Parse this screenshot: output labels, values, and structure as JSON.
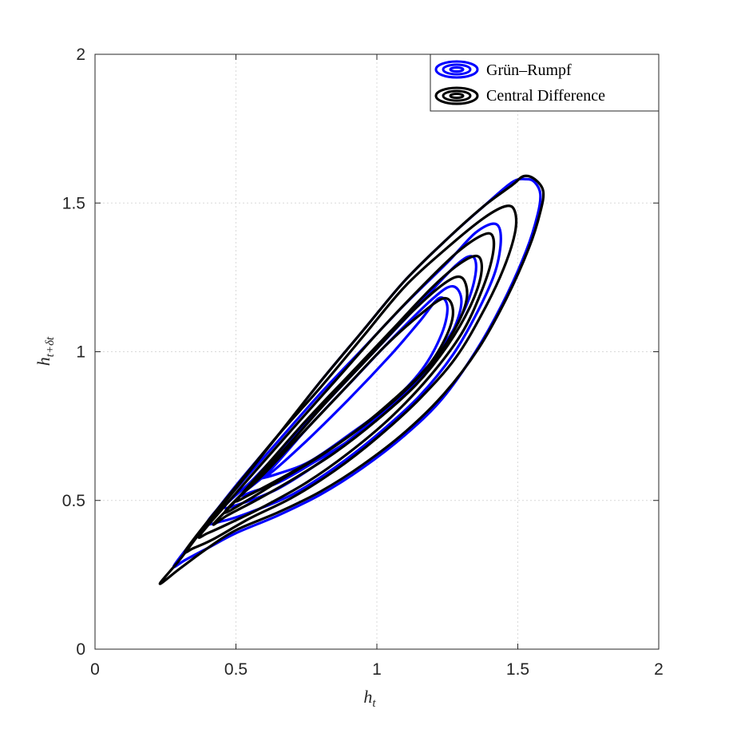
{
  "chart_data": {
    "type": "contour",
    "title": "",
    "xlabel": "h_t",
    "ylabel": "h_{t+δt}",
    "xlim": [
      0,
      2
    ],
    "ylim": [
      0,
      2
    ],
    "xticks": [
      "0",
      "0.5",
      "1",
      "1.5",
      "2"
    ],
    "yticks": [
      "0",
      "0.5",
      "1",
      "1.5",
      "2"
    ],
    "grid": true,
    "legend_position": "top-right",
    "colors": {
      "Grün–Rumpf": "#0000ff",
      "Central Difference": "#000000"
    },
    "series": [
      {
        "name": "Grün–Rumpf",
        "contours": [
          [
            [
              0.28,
              0.28
            ],
            [
              0.36,
              0.38
            ],
            [
              0.5,
              0.55
            ],
            [
              0.65,
              0.72
            ],
            [
              0.8,
              0.9
            ],
            [
              0.95,
              1.07
            ],
            [
              1.1,
              1.24
            ],
            [
              1.25,
              1.38
            ],
            [
              1.38,
              1.49
            ],
            [
              1.48,
              1.57
            ],
            [
              1.53,
              1.58
            ],
            [
              1.56,
              1.57
            ],
            [
              1.58,
              1.53
            ],
            [
              1.57,
              1.46
            ],
            [
              1.53,
              1.34
            ],
            [
              1.45,
              1.17
            ],
            [
              1.35,
              1.0
            ],
            [
              1.23,
              0.84
            ],
            [
              1.1,
              0.72
            ],
            [
              0.95,
              0.61
            ],
            [
              0.8,
              0.52
            ],
            [
              0.65,
              0.45
            ],
            [
              0.5,
              0.39
            ],
            [
              0.4,
              0.34
            ],
            [
              0.32,
              0.3
            ],
            [
              0.28,
              0.28
            ]
          ],
          [
            [
              0.4,
              0.43
            ],
            [
              0.52,
              0.56
            ],
            [
              0.65,
              0.7
            ],
            [
              0.8,
              0.86
            ],
            [
              0.95,
              1.01
            ],
            [
              1.1,
              1.16
            ],
            [
              1.25,
              1.3
            ],
            [
              1.35,
              1.4
            ],
            [
              1.42,
              1.43
            ],
            [
              1.44,
              1.38
            ],
            [
              1.42,
              1.27
            ],
            [
              1.36,
              1.14
            ],
            [
              1.27,
              0.99
            ],
            [
              1.15,
              0.85
            ],
            [
              1.0,
              0.72
            ],
            [
              0.85,
              0.61
            ],
            [
              0.7,
              0.52
            ],
            [
              0.55,
              0.46
            ],
            [
              0.45,
              0.43
            ],
            [
              0.4,
              0.43
            ]
          ],
          [
            [
              0.46,
              0.48
            ],
            [
              0.56,
              0.57
            ],
            [
              0.7,
              0.71
            ],
            [
              0.85,
              0.86
            ],
            [
              1.0,
              1.01
            ],
            [
              1.15,
              1.16
            ],
            [
              1.28,
              1.29
            ],
            [
              1.34,
              1.32
            ],
            [
              1.35,
              1.26
            ],
            [
              1.31,
              1.14
            ],
            [
              1.22,
              1.0
            ],
            [
              1.1,
              0.86
            ],
            [
              0.95,
              0.74
            ],
            [
              0.8,
              0.63
            ],
            [
              0.65,
              0.54
            ],
            [
              0.52,
              0.49
            ],
            [
              0.46,
              0.48
            ]
          ],
          [
            [
              0.52,
              0.52
            ],
            [
              0.62,
              0.6
            ],
            [
              0.75,
              0.74
            ],
            [
              0.9,
              0.89
            ],
            [
              1.05,
              1.04
            ],
            [
              1.2,
              1.18
            ],
            [
              1.27,
              1.22
            ],
            [
              1.3,
              1.17
            ],
            [
              1.27,
              1.07
            ],
            [
              1.19,
              0.95
            ],
            [
              1.07,
              0.83
            ],
            [
              0.93,
              0.72
            ],
            [
              0.78,
              0.63
            ],
            [
              0.65,
              0.56
            ],
            [
              0.56,
              0.53
            ],
            [
              0.52,
              0.52
            ]
          ],
          [
            [
              0.57,
              0.57
            ],
            [
              0.62,
              0.59
            ],
            [
              0.75,
              0.7
            ],
            [
              0.9,
              0.84
            ],
            [
              1.05,
              0.99
            ],
            [
              1.15,
              1.1
            ],
            [
              1.22,
              1.18
            ],
            [
              1.25,
              1.15
            ],
            [
              1.23,
              1.06
            ],
            [
              1.16,
              0.94
            ],
            [
              1.04,
              0.82
            ],
            [
              0.9,
              0.72
            ],
            [
              0.76,
              0.63
            ],
            [
              0.65,
              0.59
            ],
            [
              0.57,
              0.57
            ]
          ]
        ]
      },
      {
        "name": "Central Difference",
        "contours": [
          [
            [
              0.23,
              0.22
            ],
            [
              0.3,
              0.3
            ],
            [
              0.38,
              0.4
            ],
            [
              0.5,
              0.54
            ],
            [
              0.65,
              0.72
            ],
            [
              0.8,
              0.9
            ],
            [
              0.95,
              1.07
            ],
            [
              1.1,
              1.24
            ],
            [
              1.25,
              1.38
            ],
            [
              1.38,
              1.49
            ],
            [
              1.48,
              1.56
            ],
            [
              1.52,
              1.59
            ],
            [
              1.56,
              1.58
            ],
            [
              1.59,
              1.54
            ],
            [
              1.58,
              1.47
            ],
            [
              1.54,
              1.35
            ],
            [
              1.46,
              1.18
            ],
            [
              1.36,
              1.01
            ],
            [
              1.24,
              0.86
            ],
            [
              1.1,
              0.73
            ],
            [
              0.95,
              0.62
            ],
            [
              0.8,
              0.53
            ],
            [
              0.65,
              0.46
            ],
            [
              0.5,
              0.4
            ],
            [
              0.4,
              0.34
            ],
            [
              0.3,
              0.27
            ],
            [
              0.23,
              0.22
            ]
          ],
          [
            [
              0.32,
              0.33
            ],
            [
              0.4,
              0.43
            ],
            [
              0.52,
              0.57
            ],
            [
              0.65,
              0.72
            ],
            [
              0.8,
              0.88
            ],
            [
              0.95,
              1.05
            ],
            [
              1.1,
              1.22
            ],
            [
              1.25,
              1.35
            ],
            [
              1.38,
              1.45
            ],
            [
              1.46,
              1.49
            ],
            [
              1.49,
              1.47
            ],
            [
              1.49,
              1.4
            ],
            [
              1.45,
              1.28
            ],
            [
              1.38,
              1.14
            ],
            [
              1.28,
              0.98
            ],
            [
              1.15,
              0.84
            ],
            [
              1.0,
              0.71
            ],
            [
              0.85,
              0.6
            ],
            [
              0.7,
              0.51
            ],
            [
              0.55,
              0.44
            ],
            [
              0.42,
              0.37
            ],
            [
              0.35,
              0.34
            ],
            [
              0.32,
              0.33
            ]
          ],
          [
            [
              0.37,
              0.38
            ],
            [
              0.45,
              0.47
            ],
            [
              0.57,
              0.6
            ],
            [
              0.7,
              0.74
            ],
            [
              0.85,
              0.9
            ],
            [
              1.0,
              1.06
            ],
            [
              1.15,
              1.21
            ],
            [
              1.28,
              1.33
            ],
            [
              1.37,
              1.39
            ],
            [
              1.41,
              1.39
            ],
            [
              1.41,
              1.32
            ],
            [
              1.37,
              1.2
            ],
            [
              1.3,
              1.06
            ],
            [
              1.19,
              0.92
            ],
            [
              1.05,
              0.78
            ],
            [
              0.9,
              0.66
            ],
            [
              0.75,
              0.56
            ],
            [
              0.6,
              0.48
            ],
            [
              0.47,
              0.42
            ],
            [
              0.4,
              0.39
            ],
            [
              0.37,
              0.38
            ]
          ],
          [
            [
              0.42,
              0.42
            ],
            [
              0.5,
              0.5
            ],
            [
              0.62,
              0.63
            ],
            [
              0.75,
              0.77
            ],
            [
              0.9,
              0.92
            ],
            [
              1.05,
              1.07
            ],
            [
              1.2,
              1.22
            ],
            [
              1.3,
              1.3
            ],
            [
              1.36,
              1.32
            ],
            [
              1.37,
              1.26
            ],
            [
              1.33,
              1.15
            ],
            [
              1.25,
              1.02
            ],
            [
              1.14,
              0.89
            ],
            [
              1.0,
              0.77
            ],
            [
              0.85,
              0.66
            ],
            [
              0.7,
              0.57
            ],
            [
              0.57,
              0.5
            ],
            [
              0.47,
              0.45
            ],
            [
              0.42,
              0.42
            ]
          ],
          [
            [
              0.46,
              0.46
            ],
            [
              0.55,
              0.55
            ],
            [
              0.68,
              0.68
            ],
            [
              0.82,
              0.83
            ],
            [
              0.97,
              0.98
            ],
            [
              1.12,
              1.13
            ],
            [
              1.24,
              1.23
            ],
            [
              1.3,
              1.25
            ],
            [
              1.32,
              1.19
            ],
            [
              1.29,
              1.1
            ],
            [
              1.21,
              0.98
            ],
            [
              1.09,
              0.86
            ],
            [
              0.95,
              0.75
            ],
            [
              0.8,
              0.65
            ],
            [
              0.66,
              0.57
            ],
            [
              0.54,
              0.5
            ],
            [
              0.46,
              0.46
            ]
          ],
          [
            [
              0.5,
              0.5
            ],
            [
              0.6,
              0.59
            ],
            [
              0.73,
              0.72
            ],
            [
              0.88,
              0.87
            ],
            [
              1.03,
              1.02
            ],
            [
              1.16,
              1.13
            ],
            [
              1.24,
              1.18
            ],
            [
              1.27,
              1.14
            ],
            [
              1.25,
              1.06
            ],
            [
              1.18,
              0.95
            ],
            [
              1.06,
              0.84
            ],
            [
              0.92,
              0.73
            ],
            [
              0.78,
              0.64
            ],
            [
              0.65,
              0.57
            ],
            [
              0.55,
              0.52
            ],
            [
              0.5,
              0.5
            ]
          ]
        ]
      }
    ]
  }
}
